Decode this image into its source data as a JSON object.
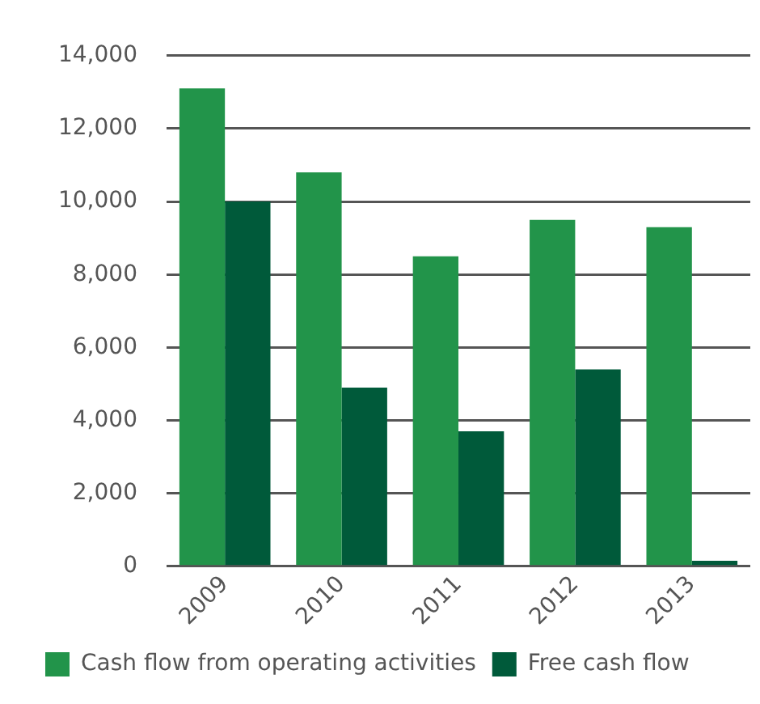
{
  "chart_data": {
    "type": "bar",
    "categories": [
      "2009",
      "2010",
      "2011",
      "2012",
      "2013"
    ],
    "series": [
      {
        "name": "Cash flow from operating activities",
        "color": "#22944a",
        "values": [
          13100,
          10800,
          8500,
          9500,
          9300
        ]
      },
      {
        "name": "Free cash flow",
        "color": "#005a3a",
        "values": [
          10000,
          4900,
          3700,
          5400,
          150
        ]
      }
    ],
    "ylim": [
      0,
      14000
    ],
    "yticks": [
      {
        "value": 0,
        "label": "0"
      },
      {
        "value": 2000,
        "label": "2,000"
      },
      {
        "value": 4000,
        "label": "4,000"
      },
      {
        "value": 6000,
        "label": "6,000"
      },
      {
        "value": 8000,
        "label": "8,000"
      },
      {
        "value": 10000,
        "label": "10,000"
      },
      {
        "value": 12000,
        "label": "12,000"
      },
      {
        "value": 14000,
        "label": "14,000"
      }
    ],
    "grid": "y",
    "legend": "bottom"
  }
}
